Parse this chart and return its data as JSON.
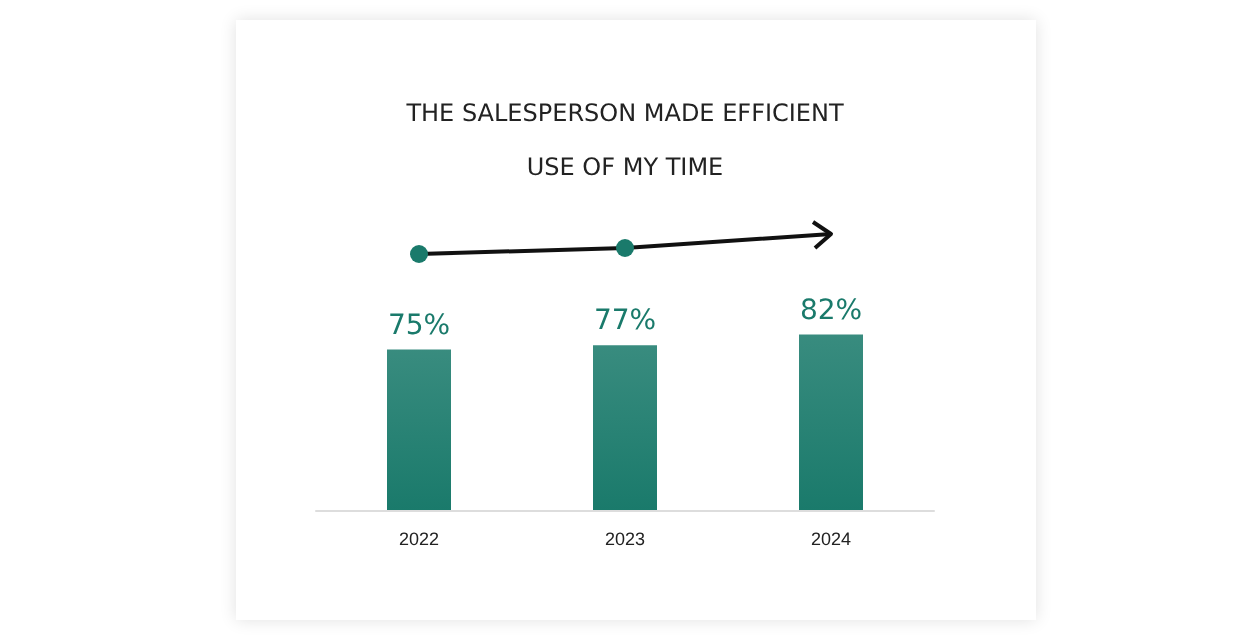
{
  "chart_data": {
    "type": "bar",
    "title": "THE SALESPERSON MADE EFFICIENT\nUSE OF MY TIME",
    "categories": [
      "2022",
      "2023",
      "2024"
    ],
    "values": [
      75,
      77,
      82
    ],
    "value_labels": [
      "75%",
      "77%",
      "82%"
    ],
    "color": "#1a7a6b"
  }
}
